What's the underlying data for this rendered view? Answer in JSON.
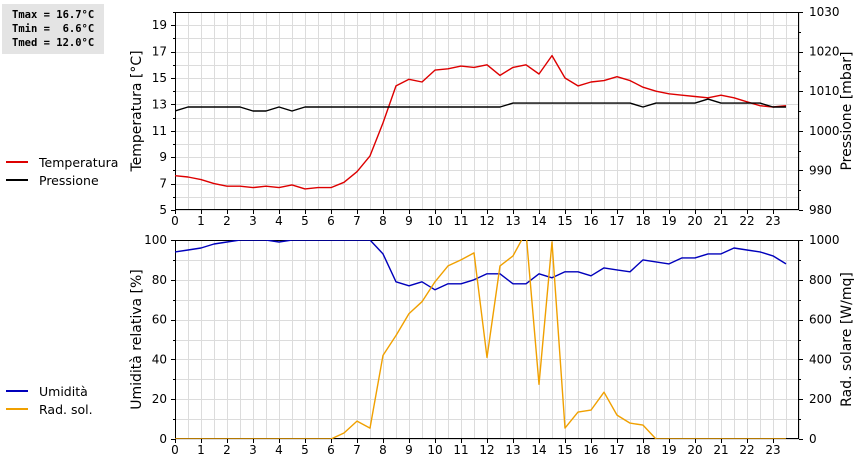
{
  "stats": {
    "tmax": "Tmax = 16.7°C",
    "tmin": "Tmin =  6.6°C",
    "tmed": "Tmed = 12.0°C"
  },
  "legend_top": [
    {
      "label": "Temperatura",
      "color": "#dd0000"
    },
    {
      "label": "Pressione",
      "color": "#000000"
    }
  ],
  "legend_bottom": [
    {
      "label": "Umidità",
      "color": "#0000bb"
    },
    {
      "label": "Rad. sol.",
      "color": "#f0a000"
    }
  ],
  "chart_data": [
    {
      "type": "line",
      "ylabel": "Temperatura [°C]",
      "ylabel_right": "Pressione [mbar]",
      "xlim": [
        0,
        24
      ],
      "ylim": [
        5,
        20
      ],
      "ylim_right": [
        980,
        1030
      ],
      "x_ticks": [
        "0",
        "1",
        "2",
        "3",
        "4",
        "5",
        "6",
        "7",
        "8",
        "9",
        "10",
        "11",
        "12",
        "13",
        "14",
        "15",
        "16",
        "17",
        "18",
        "19",
        "20",
        "21",
        "22",
        "23"
      ],
      "y_ticks": [
        "5",
        "7",
        "9",
        "11",
        "13",
        "15",
        "17",
        "19"
      ],
      "y_ticks_right": [
        "980",
        "990",
        "1000",
        "1010",
        "1020",
        "1030"
      ],
      "grid": true,
      "series": [
        {
          "name": "Temperatura",
          "color": "#dd0000",
          "axis": "left",
          "x": [
            0,
            0.5,
            1,
            1.5,
            2,
            2.5,
            3,
            3.5,
            4,
            4.5,
            5,
            5.5,
            6,
            6.5,
            7,
            7.5,
            8,
            8.5,
            9,
            9.5,
            10,
            10.5,
            11,
            11.5,
            12,
            12.5,
            13,
            13.5,
            14,
            14.5,
            15,
            15.5,
            16,
            16.5,
            17,
            17.5,
            18,
            18.5,
            19,
            19.5,
            20,
            20.5,
            21,
            21.5,
            22,
            22.5,
            23,
            23.5
          ],
          "values": [
            7.6,
            7.5,
            7.3,
            7.0,
            6.8,
            6.8,
            6.7,
            6.8,
            6.7,
            6.9,
            6.6,
            6.7,
            6.7,
            7.1,
            7.9,
            9.1,
            11.6,
            14.4,
            14.9,
            14.7,
            15.6,
            15.7,
            15.9,
            15.8,
            16.0,
            15.2,
            15.8,
            16.0,
            15.3,
            16.7,
            15.0,
            14.4,
            14.7,
            14.8,
            15.1,
            14.8,
            14.3,
            14.0,
            13.8,
            13.7,
            13.6,
            13.5,
            13.7,
            13.5,
            13.2,
            12.9,
            12.8,
            12.9
          ]
        },
        {
          "name": "Pressione",
          "color": "#000000",
          "axis": "right",
          "x": [
            0,
            0.5,
            1,
            1.5,
            2,
            2.5,
            3,
            3.5,
            4,
            4.5,
            5,
            5.5,
            6,
            6.5,
            7,
            7.5,
            8,
            8.5,
            9,
            9.5,
            10,
            10.5,
            11,
            11.5,
            12,
            12.5,
            13,
            13.5,
            14,
            14.5,
            15,
            15.5,
            16,
            16.5,
            17,
            17.5,
            18,
            18.5,
            19,
            19.5,
            20,
            20.5,
            21,
            21.5,
            22,
            22.5,
            23,
            23.5
          ],
          "values": [
            1005,
            1006,
            1006,
            1006,
            1006,
            1006,
            1005,
            1005,
            1006,
            1005,
            1006,
            1006,
            1006,
            1006,
            1006,
            1006,
            1006,
            1006,
            1006,
            1006,
            1006,
            1006,
            1006,
            1006,
            1006,
            1006,
            1007,
            1007,
            1007,
            1007,
            1007,
            1007,
            1007,
            1007,
            1007,
            1007,
            1006,
            1007,
            1007,
            1007,
            1007,
            1008,
            1007,
            1007,
            1007,
            1007,
            1006,
            1006
          ]
        }
      ]
    },
    {
      "type": "line",
      "ylabel": "Umidità relativa [%]",
      "ylabel_right": "Rad. solare [W/mq]",
      "xlim": [
        0,
        24
      ],
      "ylim": [
        0,
        100
      ],
      "ylim_right": [
        0,
        1000
      ],
      "x_ticks": [
        "0",
        "1",
        "2",
        "3",
        "4",
        "5",
        "6",
        "7",
        "8",
        "9",
        "10",
        "11",
        "12",
        "13",
        "14",
        "15",
        "16",
        "17",
        "18",
        "19",
        "20",
        "21",
        "22",
        "23"
      ],
      "y_ticks": [
        "0",
        "20",
        "40",
        "60",
        "80",
        "100"
      ],
      "y_ticks_right": [
        "0",
        "200",
        "400",
        "600",
        "800",
        "1000"
      ],
      "grid": true,
      "series": [
        {
          "name": "Umidità",
          "color": "#0000bb",
          "axis": "left",
          "x": [
            0,
            0.5,
            1,
            1.5,
            2,
            2.5,
            3,
            3.5,
            4,
            4.5,
            5,
            5.5,
            6,
            6.5,
            7,
            7.5,
            8,
            8.5,
            9,
            9.5,
            10,
            10.5,
            11,
            11.5,
            12,
            12.5,
            13,
            13.5,
            14,
            14.5,
            15,
            15.5,
            16,
            16.5,
            17,
            17.5,
            18,
            18.5,
            19,
            19.5,
            20,
            20.5,
            21,
            21.5,
            22,
            22.5,
            23,
            23.5
          ],
          "values": [
            94,
            95,
            96,
            98,
            99,
            100,
            100,
            100,
            99,
            100,
            100,
            100,
            100,
            100,
            100,
            100,
            93,
            79,
            77,
            79,
            75,
            78,
            78,
            80,
            83,
            83,
            78,
            78,
            83,
            81,
            84,
            84,
            82,
            86,
            85,
            84,
            90,
            89,
            88,
            91,
            91,
            93,
            93,
            96,
            95,
            94,
            92,
            88
          ]
        },
        {
          "name": "Rad. sol.",
          "color": "#f0a000",
          "axis": "right",
          "x": [
            0,
            0.5,
            1,
            1.5,
            2,
            2.5,
            3,
            3.5,
            4,
            4.5,
            5,
            5.5,
            6,
            6.5,
            7,
            7.5,
            8,
            8.5,
            9,
            9.5,
            10,
            10.5,
            11,
            11.5,
            12,
            12.5,
            13,
            13.5,
            14,
            14.5,
            15,
            15.5,
            16,
            16.5,
            17,
            17.5,
            18,
            18.5,
            19,
            19.5,
            20,
            20.5,
            21,
            21.5,
            22,
            22.5,
            23,
            23.5
          ],
          "values": [
            0,
            0,
            0,
            0,
            0,
            0,
            0,
            0,
            0,
            0,
            0,
            0,
            0,
            30,
            90,
            55,
            420,
            520,
            630,
            690,
            790,
            870,
            900,
            935,
            410,
            870,
            920,
            1040,
            275,
            990,
            55,
            135,
            145,
            235,
            120,
            80,
            70,
            0,
            0,
            0,
            0,
            0,
            0,
            0,
            0,
            0,
            0,
            0
          ]
        }
      ]
    }
  ]
}
